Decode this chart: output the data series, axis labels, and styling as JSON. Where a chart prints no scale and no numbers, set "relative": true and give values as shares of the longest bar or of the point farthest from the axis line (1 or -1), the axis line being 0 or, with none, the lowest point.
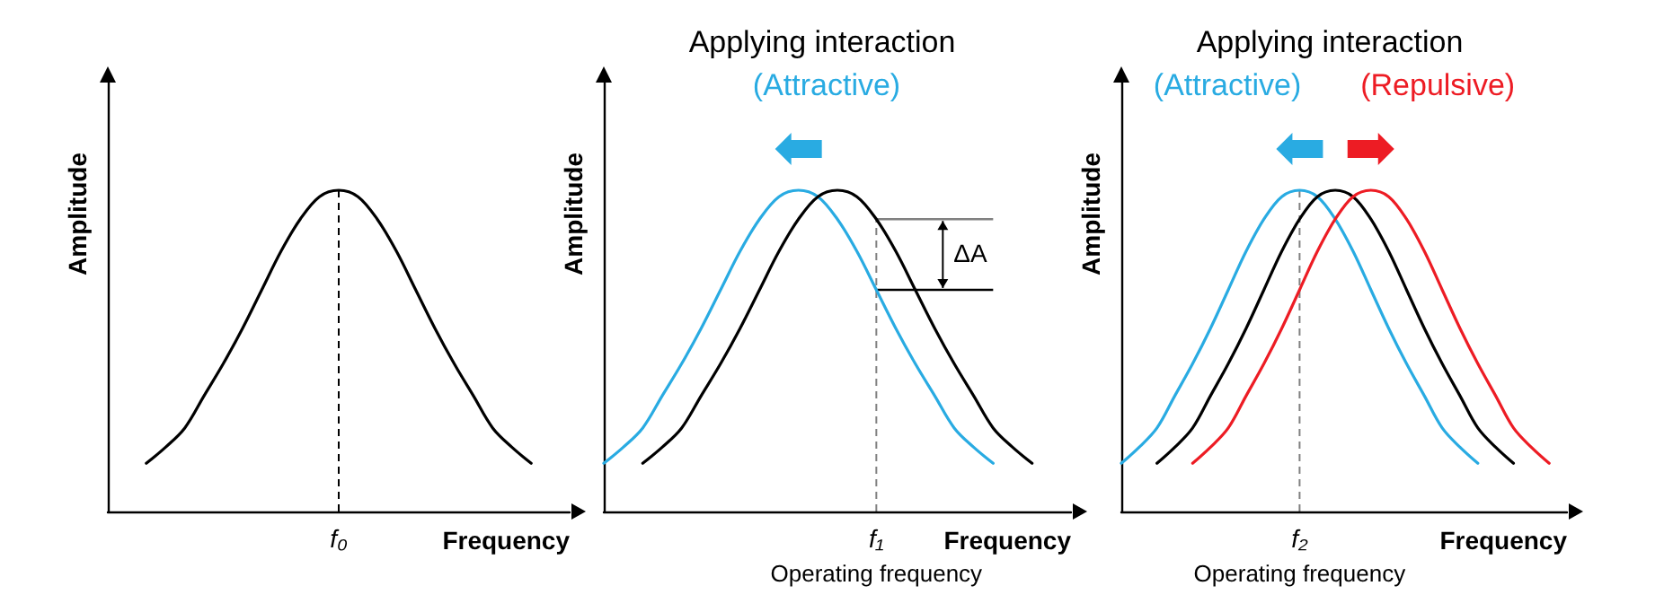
{
  "chart_data": [
    {
      "type": "line",
      "relative": true,
      "xlabel": "Frequency",
      "ylabel": "Amplitude",
      "tick_labels": false,
      "marker": "none",
      "categories": [
        null,
        null,
        null,
        null,
        null,
        null,
        null,
        null,
        null,
        null,
        null,
        null,
        null,
        null,
        null,
        null,
        null,
        null,
        null,
        null,
        null,
        null,
        null,
        null,
        null
      ],
      "series": [
        {
          "color": "#000000",
          "values": [
            null,
            null,
            0.15,
            0.2,
            0.26,
            0.36,
            0.46,
            0.57,
            0.69,
            0.81,
            0.91,
            0.98,
            1.0,
            0.98,
            0.91,
            0.81,
            0.69,
            0.57,
            0.46,
            0.36,
            0.26,
            0.2,
            0.15,
            null,
            null
          ]
        }
      ],
      "annotations": [
        "f₀"
      ]
    },
    {
      "type": "line",
      "relative": true,
      "title": "Applying interaction",
      "xlabel": "Frequency",
      "ylabel": "Amplitude",
      "tick_labels": false,
      "marker": "none",
      "legend": "top",
      "categories": [
        null,
        null,
        null,
        null,
        null,
        null,
        null,
        null,
        null,
        null,
        null,
        null,
        null,
        null,
        null,
        null,
        null,
        null,
        null,
        null,
        null,
        null,
        null,
        null,
        null
      ],
      "series": [
        {
          "name": "(Attractive)",
          "color": "#29abe2",
          "values": [
            0.15,
            0.2,
            0.26,
            0.36,
            0.46,
            0.57,
            0.69,
            0.81,
            0.91,
            0.98,
            1.0,
            0.98,
            0.91,
            0.81,
            0.69,
            0.57,
            0.46,
            0.36,
            0.26,
            0.2,
            0.15,
            null,
            null,
            null,
            null
          ]
        },
        {
          "color": "#000000",
          "values": [
            null,
            null,
            0.15,
            0.2,
            0.26,
            0.36,
            0.46,
            0.57,
            0.69,
            0.81,
            0.91,
            0.98,
            1.0,
            0.98,
            0.91,
            0.81,
            0.69,
            0.57,
            0.46,
            0.36,
            0.26,
            0.2,
            0.15,
            null,
            null
          ]
        }
      ],
      "annotations": [
        "f₁",
        "Operating frequency",
        "ΔA"
      ]
    },
    {
      "type": "line",
      "relative": true,
      "title": "Applying interaction",
      "xlabel": "Frequency",
      "ylabel": "Amplitude",
      "tick_labels": false,
      "marker": "none",
      "legend": "top",
      "categories": [
        null,
        null,
        null,
        null,
        null,
        null,
        null,
        null,
        null,
        null,
        null,
        null,
        null,
        null,
        null,
        null,
        null,
        null,
        null,
        null,
        null,
        null,
        null,
        null,
        null,
        null
      ],
      "series": [
        {
          "name": "(Attractive)",
          "color": "#29abe2",
          "values": [
            0.15,
            0.2,
            0.26,
            0.36,
            0.46,
            0.57,
            0.69,
            0.81,
            0.91,
            0.98,
            1.0,
            0.98,
            0.91,
            0.81,
            0.69,
            0.57,
            0.46,
            0.36,
            0.26,
            0.2,
            0.15,
            null,
            null,
            null,
            null,
            null
          ]
        },
        {
          "color": "#000000",
          "values": [
            null,
            null,
            0.15,
            0.2,
            0.26,
            0.36,
            0.46,
            0.57,
            0.69,
            0.81,
            0.91,
            0.98,
            1.0,
            0.98,
            0.91,
            0.81,
            0.69,
            0.57,
            0.46,
            0.36,
            0.26,
            0.2,
            0.15,
            null,
            null,
            null
          ]
        },
        {
          "name": "(Repulsive)",
          "color": "#ed1c24",
          "values": [
            null,
            null,
            null,
            null,
            0.15,
            0.2,
            0.26,
            0.36,
            0.46,
            0.57,
            0.69,
            0.81,
            0.91,
            0.98,
            1.0,
            0.98,
            0.91,
            0.81,
            0.69,
            0.57,
            0.46,
            0.36,
            0.26,
            0.2,
            0.15,
            null
          ]
        }
      ],
      "annotations": [
        "f₂",
        "Operating frequency"
      ]
    }
  ]
}
